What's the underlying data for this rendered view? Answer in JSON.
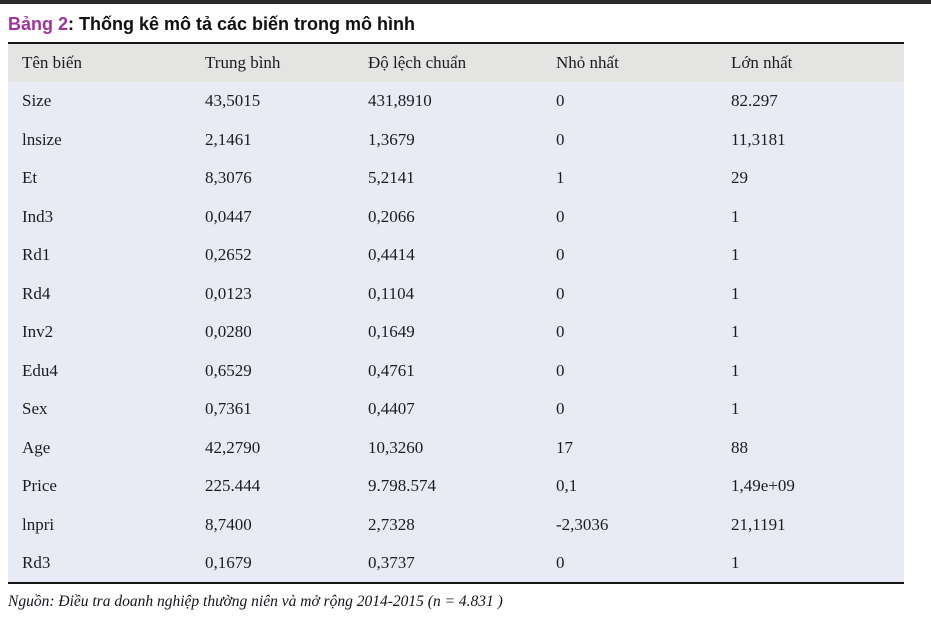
{
  "page": {
    "title_label": "Bảng 2",
    "title_separator": ": ",
    "title_text": "Thống kê mô tả các biến trong mô hình",
    "source_note": "Nguồn: Điều tra doanh nghiệp thường niên và mở rộng 2014-2015 (n = 4.831 )"
  },
  "colors": {
    "title_accent": "#a0339e",
    "header_bg": "#e4e4e2",
    "body_bg": "#e8ebf6",
    "border": "#161616",
    "top_bar": "#2a2a2a"
  },
  "table": {
    "columns": [
      "Tên biến",
      "Trung bình",
      "Độ lệch chuẩn",
      "Nhỏ nhất",
      "Lớn nhất"
    ],
    "rows": [
      [
        "Size",
        "43,5015",
        "431,8910",
        "0",
        "82.297"
      ],
      [
        "lnsize",
        "2,1461",
        "1,3679",
        "0",
        "11,3181"
      ],
      [
        "Et",
        "8,3076",
        "5,2141",
        "1",
        "29"
      ],
      [
        "Ind3",
        "0,0447",
        "0,2066",
        "0",
        "1"
      ],
      [
        "Rd1",
        "0,2652",
        "0,4414",
        "0",
        "1"
      ],
      [
        "Rd4",
        "0,0123",
        "0,1104",
        "0",
        "1"
      ],
      [
        "Inv2",
        "0,0280",
        "0,1649",
        "0",
        "1"
      ],
      [
        "Edu4",
        "0,6529",
        "0,4761",
        "0",
        "1"
      ],
      [
        "Sex",
        "0,7361",
        "0,4407",
        "0",
        "1"
      ],
      [
        "Age",
        "42,2790",
        "10,3260",
        "17",
        "88"
      ],
      [
        "Price",
        "225.444",
        "9.798.574",
        "0,1",
        "1,49e+09"
      ],
      [
        "lnpri",
        "8,7400",
        "2,7328",
        "-2,3036",
        "21,1191"
      ],
      [
        "Rd3",
        "0,1679",
        "0,3737",
        "0",
        "1"
      ]
    ]
  }
}
